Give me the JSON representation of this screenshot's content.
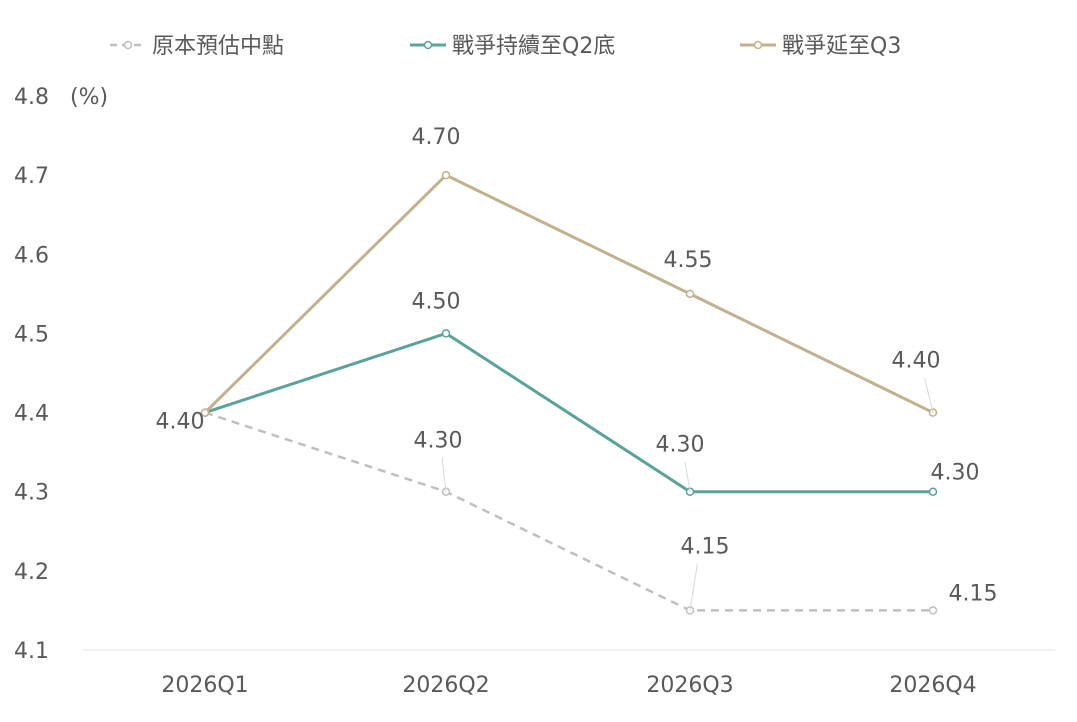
{
  "chart_data": {
    "type": "line",
    "unit_label": "(%)",
    "categories": [
      "2026Q1",
      "2026Q2",
      "2026Q3",
      "2026Q4"
    ],
    "ylim": [
      4.1,
      4.8
    ],
    "yticks": [
      "4.8",
      "4.7",
      "4.6",
      "4.5",
      "4.4",
      "4.3",
      "4.2",
      "4.1"
    ],
    "ytick_values": [
      4.8,
      4.7,
      4.6,
      4.5,
      4.4,
      4.3,
      4.2,
      4.1
    ],
    "grid": false,
    "legend_position": "top",
    "series": [
      {
        "name": "原本預估中點",
        "values": [
          4.4,
          4.3,
          4.15,
          4.15
        ],
        "labels": [
          "",
          "4.30",
          "4.15",
          "4.15"
        ],
        "color": "#bfbfbf",
        "dashed": true
      },
      {
        "name": "戰爭持續至Q2底",
        "values": [
          4.4,
          4.5,
          4.3,
          4.3
        ],
        "labels": [
          "",
          "4.50",
          "4.30",
          "4.30"
        ],
        "color": "#5aa39a",
        "dashed": false
      },
      {
        "name": "戰爭延至Q3",
        "values": [
          4.4,
          4.7,
          4.55,
          4.4
        ],
        "labels": [
          "4.40",
          "4.70",
          "4.55",
          "4.40"
        ],
        "color": "#c2b08e",
        "dashed": false
      }
    ]
  }
}
